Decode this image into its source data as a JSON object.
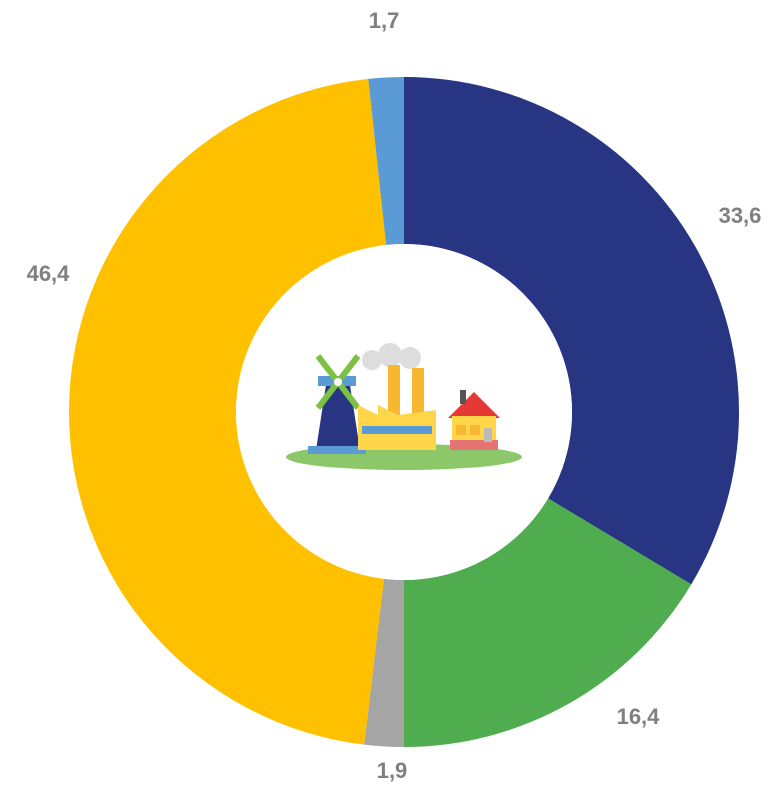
{
  "chart_data": {
    "type": "donut",
    "values": [
      33.6,
      16.4,
      1.9,
      46.4,
      1.7
    ],
    "value_labels": [
      "33,6",
      "16,4",
      "1,9",
      "46,4",
      "1,7"
    ],
    "colors": [
      "#283583",
      "#4fad4f",
      "#a5a5a5",
      "#ffc000",
      "#5b9bd5"
    ]
  }
}
